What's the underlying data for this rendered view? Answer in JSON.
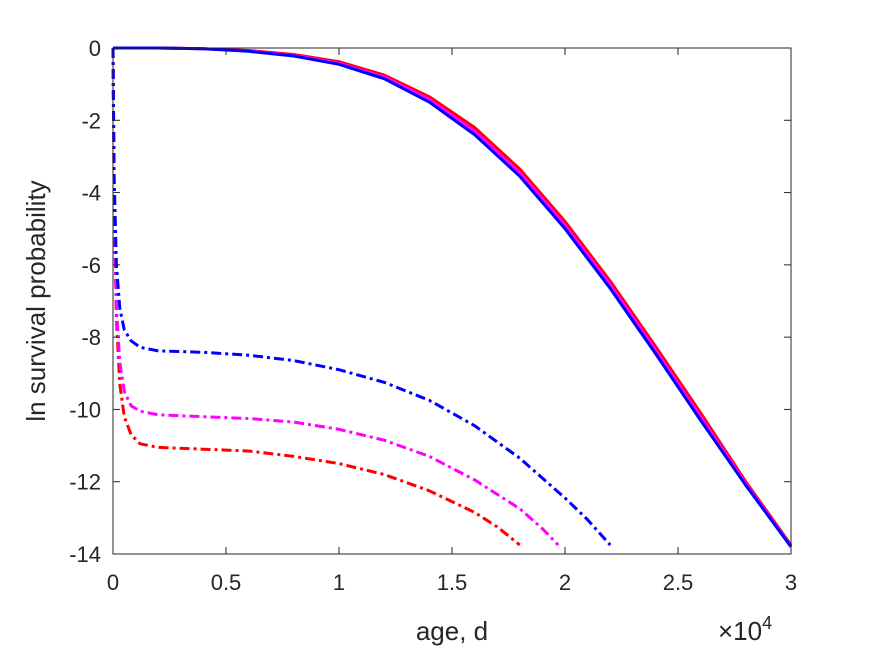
{
  "chart_data": {
    "type": "line",
    "xlabel": "age, d",
    "ylabel": "ln survival probability",
    "x_exponent_label": "×10",
    "x_exponent_power": "4",
    "xlim": [
      0,
      30000
    ],
    "ylim": [
      -14,
      0
    ],
    "x_ticks": [
      0,
      5000,
      10000,
      15000,
      20000,
      25000,
      30000
    ],
    "x_tick_labels": [
      "0",
      "0.5",
      "1",
      "1.5",
      "2",
      "2.5",
      "3"
    ],
    "y_ticks": [
      0,
      -2,
      -4,
      -6,
      -8,
      -10,
      -12,
      -14
    ],
    "y_tick_labels": [
      "0",
      "-2",
      "-4",
      "-6",
      "-8",
      "-10",
      "-12",
      "-14"
    ],
    "grid": false,
    "series": [
      {
        "color": "#ff0000",
        "style": "solid",
        "points": [
          [
            0,
            0
          ],
          [
            2000,
            0
          ],
          [
            4000,
            -0.02
          ],
          [
            6000,
            -0.07
          ],
          [
            8000,
            -0.18
          ],
          [
            10000,
            -0.38
          ],
          [
            12000,
            -0.75
          ],
          [
            14000,
            -1.35
          ],
          [
            16000,
            -2.2
          ],
          [
            18000,
            -3.35
          ],
          [
            20000,
            -4.8
          ],
          [
            22000,
            -6.45
          ],
          [
            24000,
            -8.25
          ],
          [
            26000,
            -10.1
          ],
          [
            28000,
            -12.0
          ],
          [
            30000,
            -13.75
          ]
        ]
      },
      {
        "color": "#ff00ff",
        "style": "solid",
        "points": [
          [
            0,
            0
          ],
          [
            2000,
            0
          ],
          [
            4000,
            -0.02
          ],
          [
            6000,
            -0.08
          ],
          [
            8000,
            -0.2
          ],
          [
            10000,
            -0.42
          ],
          [
            12000,
            -0.8
          ],
          [
            14000,
            -1.42
          ],
          [
            16000,
            -2.3
          ],
          [
            18000,
            -3.45
          ],
          [
            20000,
            -4.9
          ],
          [
            22000,
            -6.55
          ],
          [
            24000,
            -8.35
          ],
          [
            26000,
            -10.2
          ],
          [
            28000,
            -12.05
          ],
          [
            30000,
            -13.78
          ]
        ]
      },
      {
        "color": "#0000ff",
        "style": "solid",
        "points": [
          [
            0,
            0
          ],
          [
            2000,
            0
          ],
          [
            4000,
            -0.02
          ],
          [
            6000,
            -0.09
          ],
          [
            8000,
            -0.22
          ],
          [
            10000,
            -0.45
          ],
          [
            12000,
            -0.85
          ],
          [
            14000,
            -1.5
          ],
          [
            16000,
            -2.4
          ],
          [
            18000,
            -3.55
          ],
          [
            20000,
            -5.0
          ],
          [
            22000,
            -6.65
          ],
          [
            24000,
            -8.45
          ],
          [
            26000,
            -10.3
          ],
          [
            28000,
            -12.1
          ],
          [
            30000,
            -13.8
          ]
        ]
      },
      {
        "color": "#ff0000",
        "style": "dashdot",
        "points": [
          [
            0,
            0
          ],
          [
            50,
            -4
          ],
          [
            150,
            -7.5
          ],
          [
            300,
            -9.3
          ],
          [
            500,
            -10.2
          ],
          [
            800,
            -10.7
          ],
          [
            1200,
            -10.95
          ],
          [
            2000,
            -11.05
          ],
          [
            4000,
            -11.1
          ],
          [
            6000,
            -11.15
          ],
          [
            8000,
            -11.3
          ],
          [
            10000,
            -11.5
          ],
          [
            12000,
            -11.8
          ],
          [
            14000,
            -12.25
          ],
          [
            16000,
            -12.85
          ],
          [
            17000,
            -13.25
          ],
          [
            18000,
            -13.75
          ]
        ]
      },
      {
        "color": "#ff00ff",
        "style": "dashdot",
        "points": [
          [
            0,
            0
          ],
          [
            50,
            -4
          ],
          [
            150,
            -7.2
          ],
          [
            300,
            -8.7
          ],
          [
            500,
            -9.5
          ],
          [
            800,
            -9.9
          ],
          [
            1200,
            -10.05
          ],
          [
            2000,
            -10.15
          ],
          [
            4000,
            -10.2
          ],
          [
            6000,
            -10.25
          ],
          [
            8000,
            -10.35
          ],
          [
            10000,
            -10.55
          ],
          [
            12000,
            -10.85
          ],
          [
            14000,
            -11.3
          ],
          [
            16000,
            -11.95
          ],
          [
            18000,
            -12.75
          ],
          [
            19000,
            -13.3
          ],
          [
            19700,
            -13.75
          ]
        ]
      },
      {
        "color": "#0000ff",
        "style": "dashdot",
        "points": [
          [
            0,
            0
          ],
          [
            50,
            -3.5
          ],
          [
            150,
            -6
          ],
          [
            300,
            -7.2
          ],
          [
            500,
            -7.8
          ],
          [
            800,
            -8.1
          ],
          [
            1200,
            -8.28
          ],
          [
            2000,
            -8.38
          ],
          [
            4000,
            -8.42
          ],
          [
            6000,
            -8.5
          ],
          [
            8000,
            -8.65
          ],
          [
            10000,
            -8.9
          ],
          [
            12000,
            -9.25
          ],
          [
            14000,
            -9.75
          ],
          [
            16000,
            -10.45
          ],
          [
            18000,
            -11.35
          ],
          [
            20000,
            -12.45
          ],
          [
            21000,
            -13.05
          ],
          [
            22000,
            -13.75
          ]
        ]
      }
    ]
  }
}
